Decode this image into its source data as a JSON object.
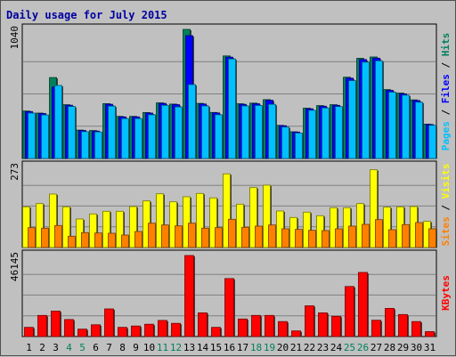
{
  "chart_data": {
    "type": "bar",
    "title": "Daily usage for July 2015",
    "days": [
      "1",
      "2",
      "3",
      "4",
      "5",
      "6",
      "7",
      "8",
      "9",
      "10",
      "11",
      "12",
      "13",
      "14",
      "15",
      "16",
      "17",
      "18",
      "19",
      "20",
      "21",
      "22",
      "23",
      "24",
      "25",
      "26",
      "27",
      "28",
      "29",
      "30",
      "31"
    ],
    "weekend_days": [
      "4",
      "5",
      "11",
      "12",
      "18",
      "19",
      "25",
      "26"
    ],
    "panels": [
      {
        "id": "hits",
        "ymax_label": "1040",
        "ymax": 1040,
        "gridlines": 3,
        "series": [
          {
            "name": "Hits",
            "color": "#00805C",
            "values": [
              382,
              366,
              652,
              433,
              229,
              225,
              442,
              339,
              339,
              370,
              448,
              438,
              1040,
              444,
              371,
              826,
              441,
              446,
              474,
              267,
              215,
              405,
              426,
              433,
              655,
              807,
              818,
              555,
              527,
              472,
              277
            ]
          },
          {
            "name": "Files",
            "color": "#0000FF",
            "values": [
              378,
              362,
              575,
              429,
              226,
              221,
              437,
              335,
              335,
              366,
              444,
              434,
              990,
              439,
              367,
              816,
              436,
              441,
              469,
              264,
              213,
              400,
              421,
              428,
              647,
              797,
              808,
              549,
              521,
              467,
              274
            ]
          },
          {
            "name": "Pages",
            "color": "#00C0FF",
            "values": [
              366,
              351,
              588,
              419,
              216,
              214,
              422,
              321,
              321,
              352,
              428,
              415,
              595,
              423,
              352,
              802,
              423,
              427,
              436,
              253,
              205,
              388,
              407,
              418,
              627,
              776,
              787,
              534,
              510,
              453,
              267
            ]
          }
        ]
      },
      {
        "id": "visits",
        "ymax_label": "273",
        "ymax": 273,
        "gridlines": 3,
        "series": [
          {
            "name": "Visits",
            "color": "#FFFF00",
            "values": [
              137,
              148,
              180,
              137,
              96,
              113,
              122,
              122,
              138,
              157,
              181,
              154,
              171,
              182,
              167,
              248,
              146,
              202,
              210,
              123,
              101,
              119,
              107,
              134,
              134,
              148,
              262,
              136,
              137,
              138,
              88
            ]
          },
          {
            "name": "Sites",
            "color": "#FF8000",
            "values": [
              67,
              65,
              74,
              38,
              50,
              49,
              48,
              42,
              54,
              82,
              76,
              73,
              82,
              65,
              67,
              95,
              68,
              72,
              76,
              63,
              61,
              58,
              57,
              63,
              72,
              78,
              94,
              60,
              77,
              84,
              63
            ]
          }
        ]
      },
      {
        "id": "kbytes",
        "ymax_label": "46145",
        "ymax": 46145,
        "gridlines": 3,
        "series": [
          {
            "name": "KBytes",
            "color": "#FF0000",
            "values": [
              5200,
              12000,
              14500,
              9700,
              4200,
              6700,
              15700,
              5200,
              6000,
              7000,
              9200,
              7500,
              46145,
              13500,
              5200,
              33000,
              10000,
              12000,
              12000,
              8500,
              3200,
              17500,
              13500,
              11500,
              28500,
              36500,
              9300,
              16000,
              12500,
              8500,
              2800
            ]
          }
        ]
      }
    ]
  }
}
